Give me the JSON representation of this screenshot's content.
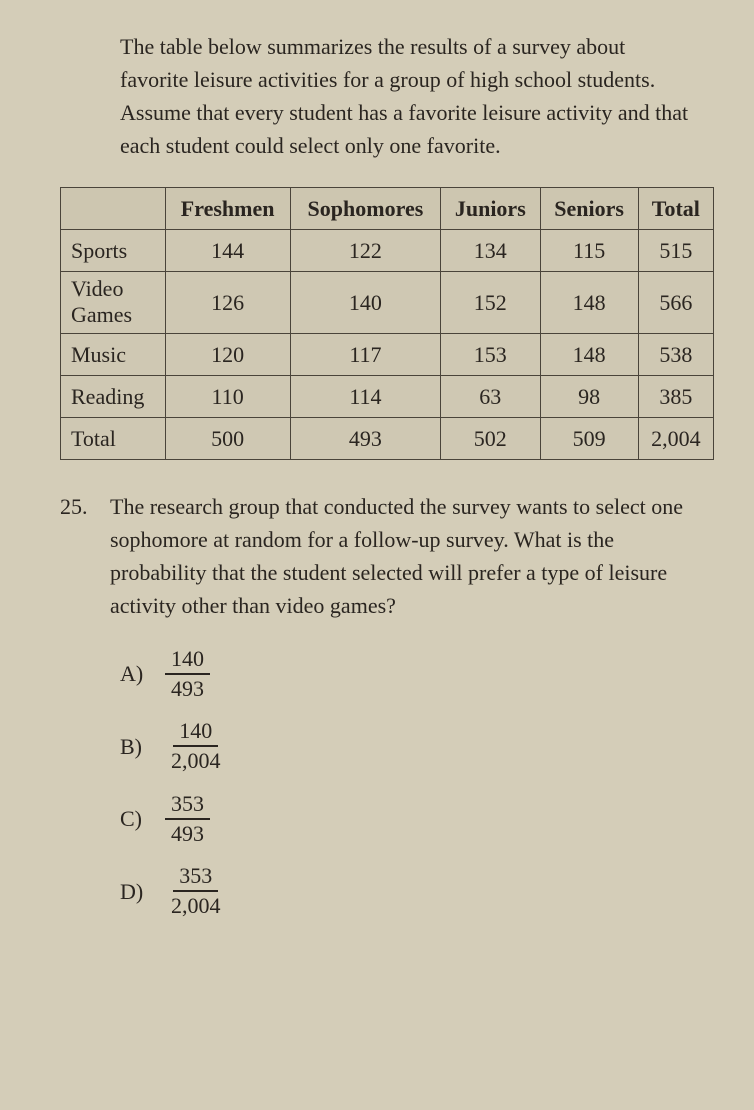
{
  "intro": "The table below summarizes the results of a survey about favorite leisure activities for a group of high school students. Assume that every student has a favorite leisure activity and that each student could select only one favorite.",
  "table": {
    "headers": [
      "",
      "Freshmen",
      "Sophomores",
      "Juniors",
      "Seniors",
      "Total"
    ],
    "rows": [
      {
        "label": "Sports",
        "cells": [
          "144",
          "122",
          "134",
          "115",
          "515"
        ]
      },
      {
        "label": "Video Games",
        "cells": [
          "126",
          "140",
          "152",
          "148",
          "566"
        ]
      },
      {
        "label": "Music",
        "cells": [
          "120",
          "117",
          "153",
          "148",
          "538"
        ]
      },
      {
        "label": "Reading",
        "cells": [
          "110",
          "114",
          "63",
          "98",
          "385"
        ]
      },
      {
        "label": "Total",
        "cells": [
          "500",
          "493",
          "502",
          "509",
          "2,004"
        ]
      }
    ]
  },
  "question": {
    "number": "25.",
    "text": "The research group that conducted the survey wants to select one sophomore at random for a follow-up survey. What is the probability that the student selected will prefer a type of leisure activity other than video games?"
  },
  "choices": {
    "a": {
      "letter": "A)",
      "num": "140",
      "den": "493"
    },
    "b": {
      "letter": "B)",
      "num": "140",
      "den": "2,004"
    },
    "c": {
      "letter": "C)",
      "num": "353",
      "den": "493"
    },
    "d": {
      "letter": "D)",
      "num": "353",
      "den": "2,004"
    }
  }
}
